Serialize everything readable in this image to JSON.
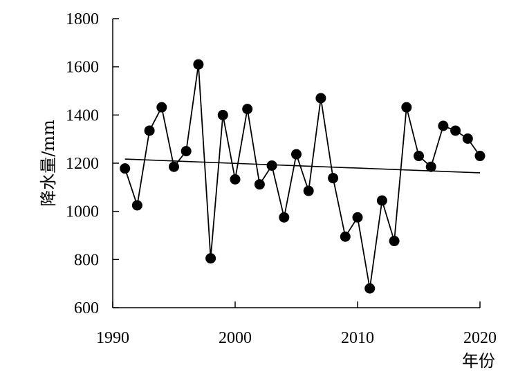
{
  "chart_data": {
    "type": "line",
    "title": "",
    "xlabel": "年份",
    "ylabel": "降水量/mm",
    "xlim": [
      1990,
      2020
    ],
    "ylim": [
      600,
      1800
    ],
    "xticks": [
      1990,
      2000,
      2010,
      2020
    ],
    "yticks": [
      600,
      800,
      1000,
      1200,
      1400,
      1600,
      1800
    ],
    "grid": false,
    "legend": "none",
    "series": [
      {
        "x": [
          1991,
          1992,
          1993,
          1994,
          1995,
          1996,
          1997,
          1998,
          1999,
          2000,
          2001,
          2002,
          2003,
          2004,
          2005,
          2006,
          2007,
          2008,
          2009,
          2010,
          2011,
          2012,
          2013,
          2014,
          2015,
          2016,
          2017,
          2018,
          2019,
          2020
        ],
        "y": [
          1178,
          1025,
          1335,
          1432,
          1185,
          1250,
          1610,
          805,
          1400,
          1133,
          1425,
          1112,
          1190,
          975,
          1237,
          1085,
          1470,
          1138,
          895,
          975,
          680,
          1045,
          877,
          1432,
          1230,
          1185,
          1355,
          1335,
          1302,
          1230
        ],
        "color": "#000000",
        "marker": "circle"
      },
      {
        "x": [
          1991,
          2020
        ],
        "y": [
          1217,
          1160
        ],
        "color": "#000000",
        "marker": "none"
      }
    ]
  }
}
